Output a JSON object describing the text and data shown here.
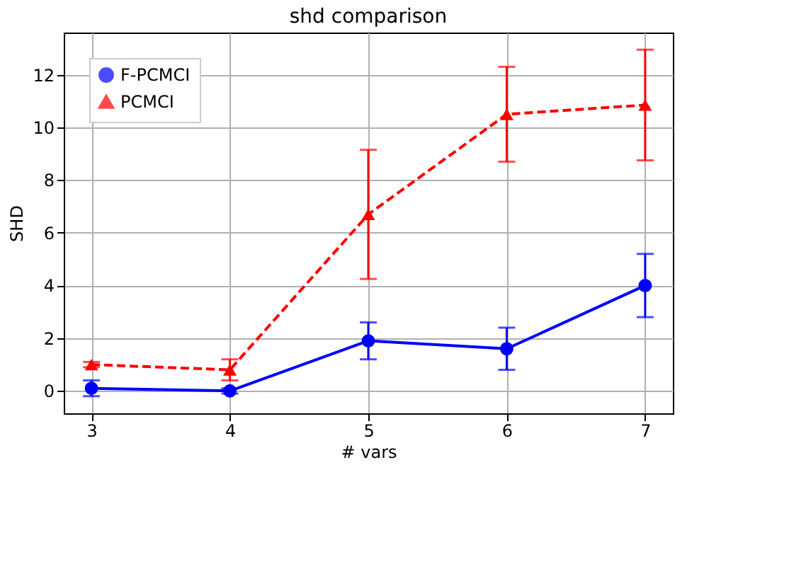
{
  "chart_data": {
    "type": "line",
    "title": "shd comparison",
    "xlabel": "# vars",
    "ylabel": "SHD",
    "x": [
      3,
      4,
      5,
      6,
      7
    ],
    "series": [
      {
        "name": "F-PCMCI",
        "color": "#0000ff",
        "values": [
          0.1,
          0.0,
          1.9,
          1.6,
          4.0
        ],
        "errors": [
          0.3,
          0.1,
          0.7,
          0.8,
          1.2
        ],
        "marker": "circle",
        "line_style": "solid"
      },
      {
        "name": "PCMCI",
        "color": "#ff0000",
        "values": [
          1.0,
          0.8,
          6.7,
          10.5,
          10.85
        ],
        "errors": [
          0.1,
          0.4,
          2.45,
          1.8,
          2.1
        ],
        "marker": "triangle",
        "line_style": "dashed"
      }
    ],
    "xlim": [
      2.8,
      7.2
    ],
    "xticks": [
      3,
      4,
      5,
      6,
      7
    ],
    "ylim": [
      -0.85,
      13.6
    ],
    "yticks": [
      0,
      2,
      4,
      6,
      8,
      10,
      12
    ],
    "grid": true,
    "legend": "top left"
  }
}
